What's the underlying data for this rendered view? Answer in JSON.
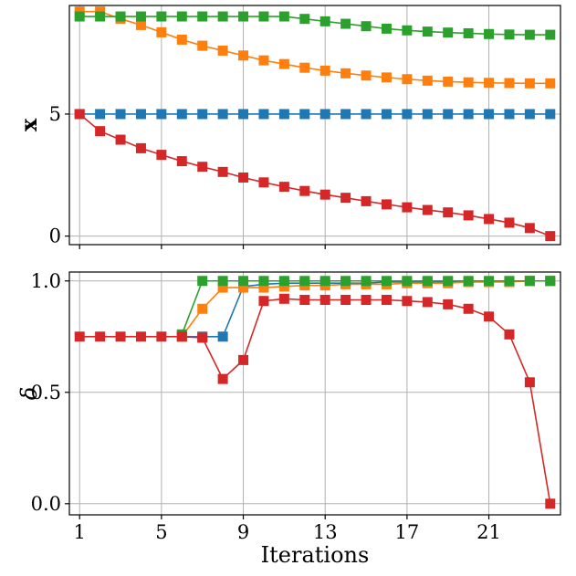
{
  "chart_data": [
    {
      "type": "line",
      "ylabel": "x",
      "xlabel": "",
      "xlim": [
        0.5,
        24.5
      ],
      "ylim": [
        -0.35,
        9.45
      ],
      "x_ticks": [
        1,
        5,
        9,
        13,
        17,
        21
      ],
      "y_ticks": [
        0,
        5
      ],
      "y_tick_labels": [
        "0",
        "5"
      ],
      "grid": true,
      "series": [
        {
          "name": "blue",
          "color": "#1f77b4",
          "x": [
            1,
            2,
            3,
            4,
            5,
            6,
            7,
            8,
            9,
            10,
            11,
            12,
            13,
            14,
            15,
            16,
            17,
            18,
            19,
            20,
            21,
            22,
            23,
            24
          ],
          "values": [
            5,
            5,
            5,
            5,
            5,
            5,
            5,
            5,
            5,
            5,
            5,
            5,
            5,
            5,
            5,
            5,
            5,
            5,
            5,
            5,
            5,
            5,
            5,
            5
          ]
        },
        {
          "name": "orange",
          "color": "#ff7f0e",
          "x": [
            1,
            2,
            3,
            4,
            5,
            6,
            7,
            8,
            9,
            10,
            11,
            12,
            13,
            14,
            15,
            16,
            17,
            18,
            19,
            20,
            21,
            22,
            23,
            24
          ],
          "values": [
            9.2,
            9.2,
            8.9,
            8.65,
            8.35,
            8.05,
            7.8,
            7.6,
            7.4,
            7.2,
            7.05,
            6.9,
            6.78,
            6.67,
            6.58,
            6.5,
            6.43,
            6.37,
            6.33,
            6.3,
            6.28,
            6.27,
            6.26,
            6.26
          ]
        },
        {
          "name": "green",
          "color": "#2ca02c",
          "x": [
            1,
            2,
            3,
            4,
            5,
            6,
            7,
            8,
            9,
            10,
            11,
            12,
            13,
            14,
            15,
            16,
            17,
            18,
            19,
            20,
            21,
            22,
            23,
            24
          ],
          "values": [
            9.0,
            9.0,
            9.0,
            9.0,
            9.0,
            9.0,
            9.0,
            9.0,
            9.0,
            9.0,
            9.0,
            8.9,
            8.8,
            8.7,
            8.6,
            8.5,
            8.43,
            8.38,
            8.34,
            8.31,
            8.28,
            8.26,
            8.25,
            8.25
          ]
        },
        {
          "name": "red",
          "color": "#d62728",
          "x": [
            1,
            2,
            3,
            4,
            5,
            6,
            7,
            8,
            9,
            10,
            11,
            12,
            13,
            14,
            15,
            16,
            17,
            18,
            19,
            20,
            21,
            22,
            23,
            24
          ],
          "values": [
            5.0,
            4.3,
            3.95,
            3.6,
            3.33,
            3.07,
            2.84,
            2.63,
            2.4,
            2.2,
            2.02,
            1.85,
            1.7,
            1.57,
            1.43,
            1.3,
            1.18,
            1.07,
            0.97,
            0.85,
            0.7,
            0.55,
            0.33,
            0.0
          ]
        }
      ]
    },
    {
      "type": "line",
      "ylabel": "δ",
      "xlabel": "Iterations",
      "xlim": [
        0.5,
        24.5
      ],
      "ylim": [
        -0.05,
        1.04
      ],
      "x_ticks": [
        1,
        5,
        9,
        13,
        17,
        21
      ],
      "y_ticks": [
        0,
        0.5,
        1.0
      ],
      "y_tick_labels": [
        "0.0",
        "0.5",
        "1.0"
      ],
      "grid": true,
      "series": [
        {
          "name": "blue",
          "color": "#1f77b4",
          "x": [
            6,
            7,
            8,
            9,
            10,
            11,
            12,
            13,
            14,
            15,
            16,
            17,
            18,
            19,
            20,
            21,
            22,
            23,
            24
          ],
          "values": [
            0.75,
            0.75,
            0.75,
            0.975,
            0.985,
            0.99,
            0.99,
            0.99,
            0.99,
            0.99,
            0.995,
            0.995,
            0.995,
            0.995,
            0.995,
            0.997,
            0.998,
            1.0,
            1.0
          ]
        },
        {
          "name": "orange",
          "color": "#ff7f0e",
          "x": [
            6,
            7,
            8,
            9,
            10,
            11,
            12,
            13,
            14,
            15,
            16,
            17,
            18,
            19,
            20,
            21,
            22,
            23,
            24
          ],
          "values": [
            0.75,
            0.875,
            0.97,
            0.97,
            0.97,
            0.975,
            0.98,
            0.98,
            0.985,
            0.985,
            0.985,
            0.99,
            0.99,
            0.99,
            0.995,
            0.995,
            0.995,
            1.0,
            1.0
          ]
        },
        {
          "name": "green",
          "color": "#2ca02c",
          "x": [
            6,
            7,
            8,
            9,
            10,
            11,
            12,
            13,
            14,
            15,
            16,
            17,
            18,
            19,
            20,
            21,
            22,
            23,
            24
          ],
          "values": [
            0.76,
            1.0,
            1.0,
            1.0,
            1.0,
            1.0,
            1.0,
            1.0,
            1.0,
            1.0,
            1.0,
            1.0,
            1.0,
            1.0,
            1.0,
            1.0,
            1.0,
            1.0,
            1.0
          ]
        },
        {
          "name": "red",
          "color": "#d62728",
          "x": [
            1,
            2,
            3,
            4,
            5,
            6,
            7,
            8,
            9,
            10,
            11,
            12,
            13,
            14,
            15,
            16,
            17,
            18,
            19,
            20,
            21,
            22,
            23,
            24
          ],
          "values": [
            0.75,
            0.75,
            0.75,
            0.75,
            0.75,
            0.75,
            0.745,
            0.56,
            0.645,
            0.91,
            0.92,
            0.915,
            0.915,
            0.915,
            0.915,
            0.915,
            0.91,
            0.905,
            0.895,
            0.875,
            0.84,
            0.76,
            0.545,
            0.0
          ]
        }
      ]
    }
  ]
}
